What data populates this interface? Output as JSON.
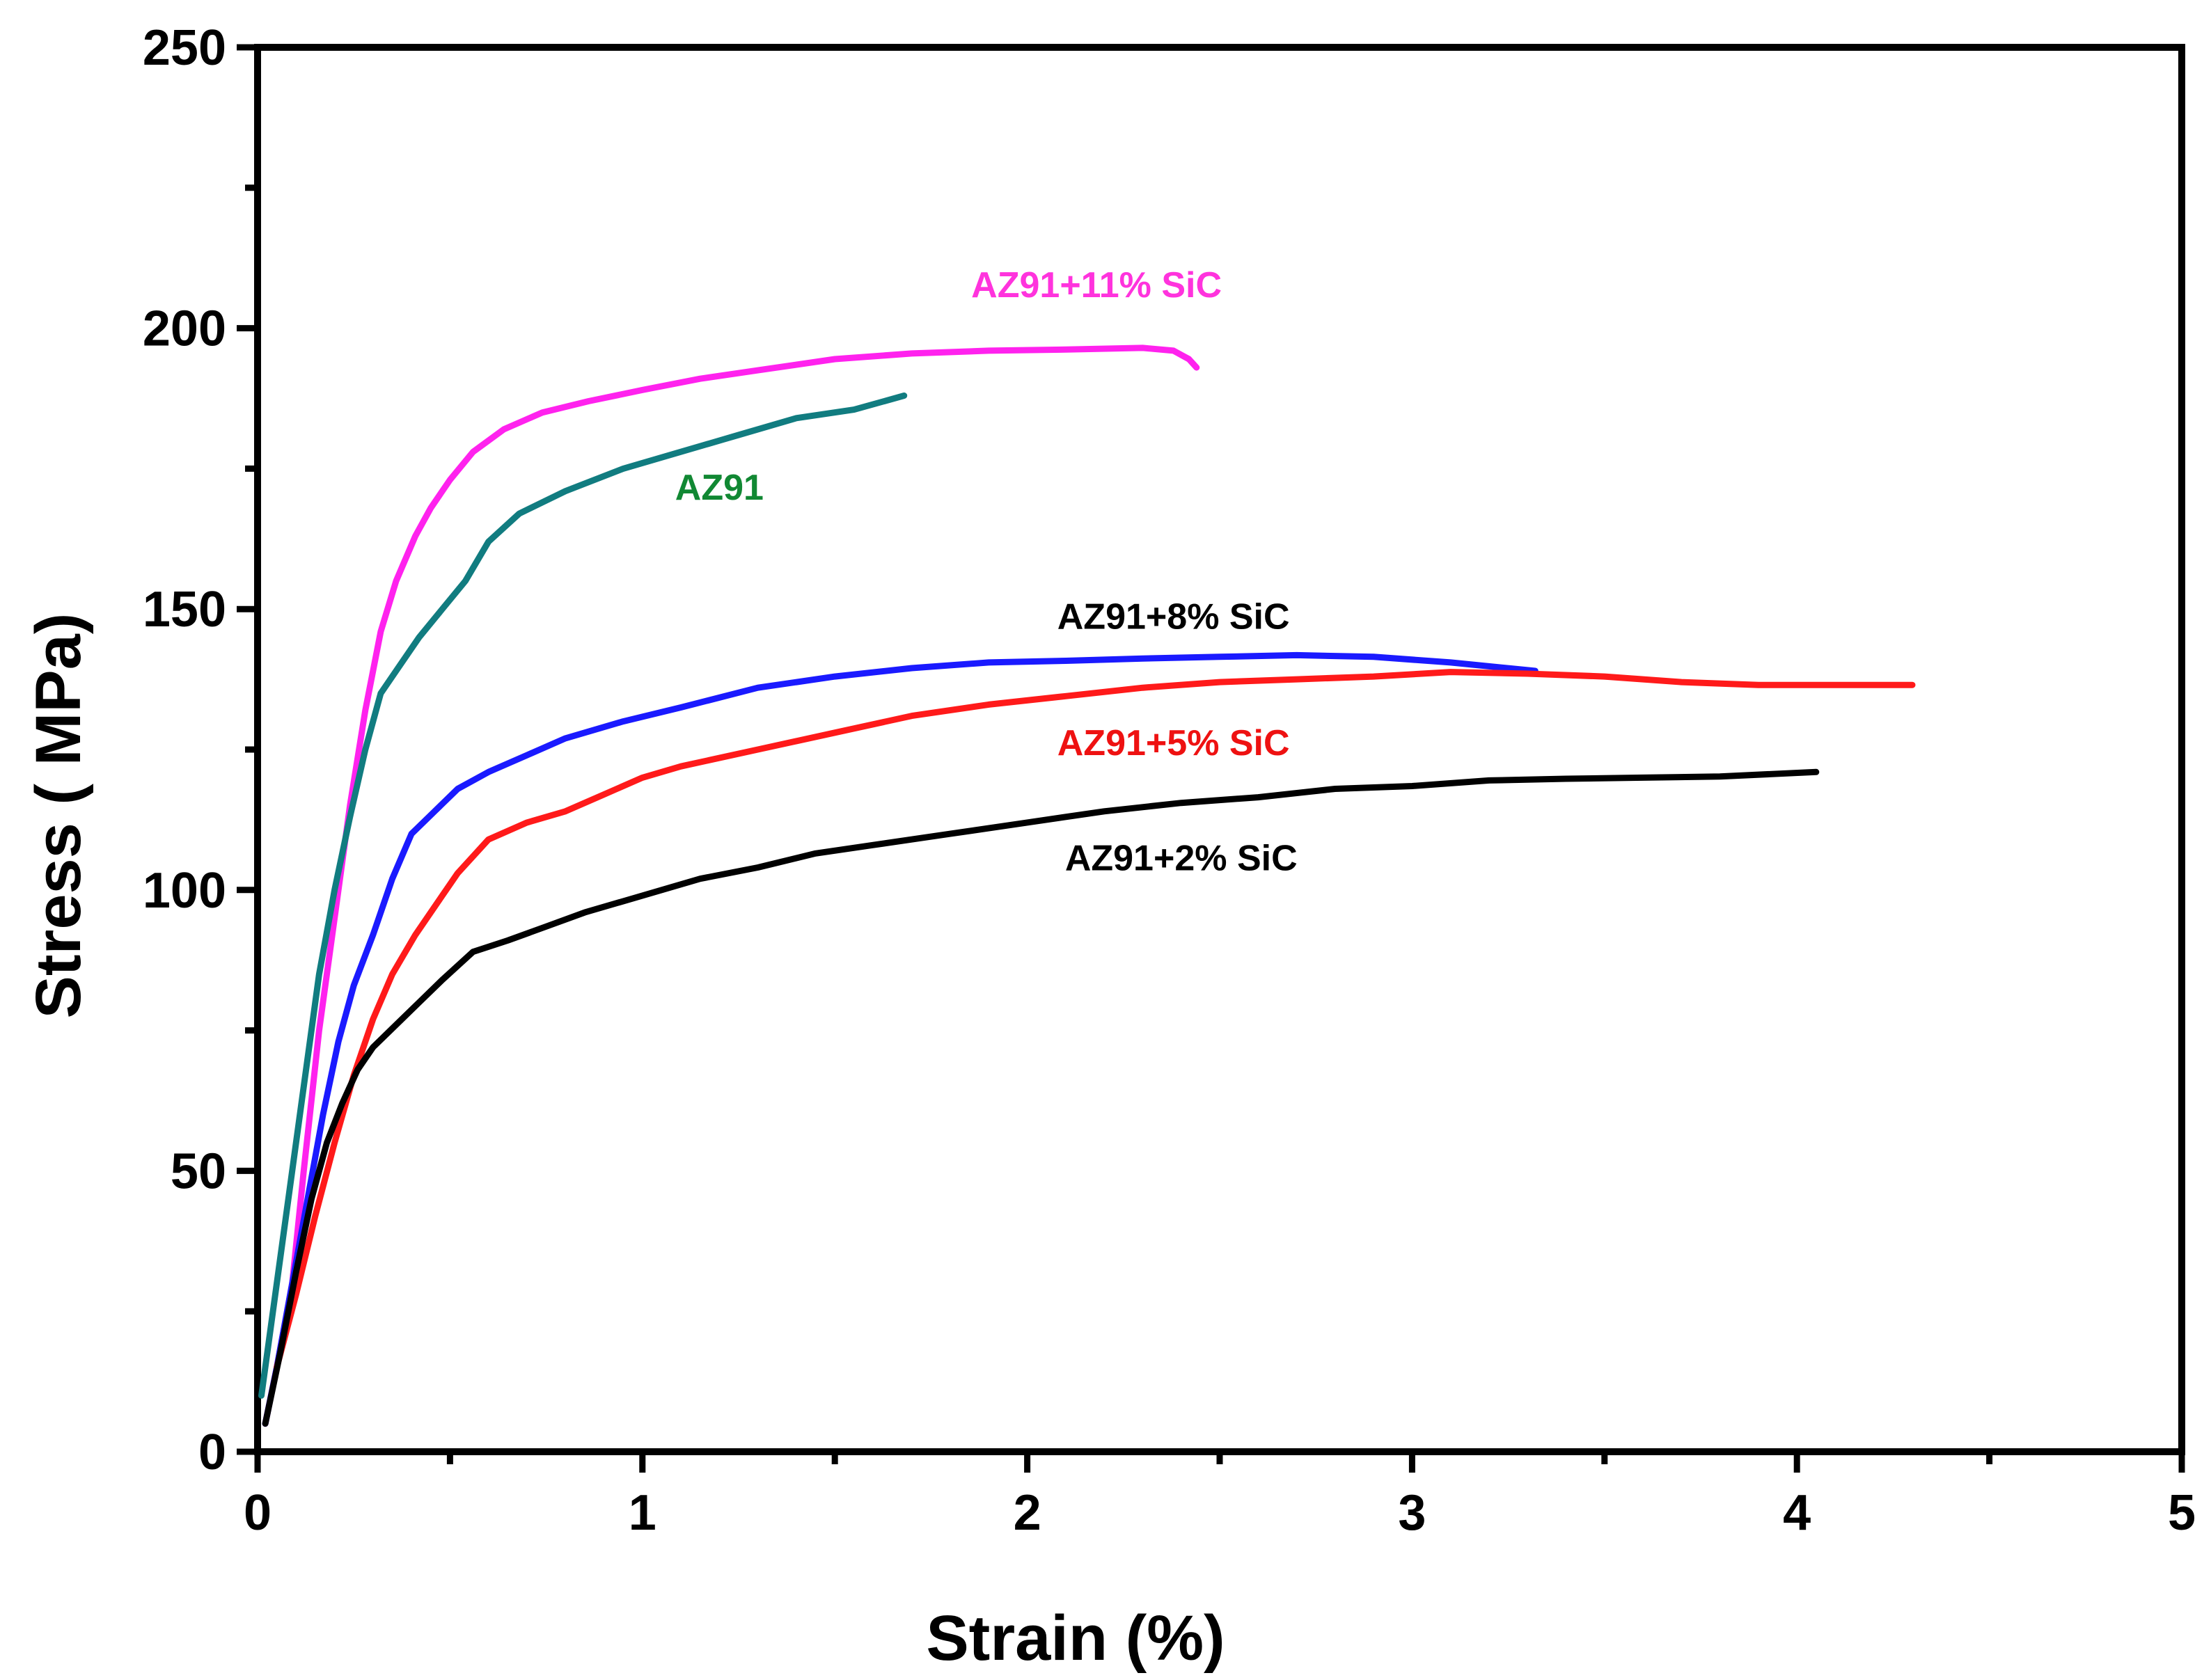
{
  "chart_data": {
    "type": "line",
    "title": "",
    "xlabel": "Strain (%)",
    "ylabel": "Stress ( MPa)",
    "xlim": [
      0,
      5
    ],
    "ylim": [
      0,
      250
    ],
    "x_ticks": [
      "0",
      "1",
      "2",
      "3",
      "4",
      "5"
    ],
    "y_ticks": [
      "0",
      "50",
      "100",
      "150",
      "200",
      "250"
    ],
    "grid": false,
    "series": [
      {
        "name": "AZ91+11% SiC",
        "color": "#ff22ee",
        "label": "AZ91+11% SiC",
        "points": [
          [
            0.02,
            5
          ],
          [
            0.05,
            15
          ],
          [
            0.09,
            30
          ],
          [
            0.12,
            50
          ],
          [
            0.16,
            75
          ],
          [
            0.2,
            95
          ],
          [
            0.24,
            115
          ],
          [
            0.28,
            132
          ],
          [
            0.32,
            146
          ],
          [
            0.36,
            155
          ],
          [
            0.41,
            163
          ],
          [
            0.45,
            168
          ],
          [
            0.5,
            173
          ],
          [
            0.56,
            178
          ],
          [
            0.64,
            182
          ],
          [
            0.74,
            185
          ],
          [
            0.86,
            187
          ],
          [
            1.0,
            189
          ],
          [
            1.15,
            191
          ],
          [
            1.3,
            192.5
          ],
          [
            1.5,
            194.5
          ],
          [
            1.7,
            195.5
          ],
          [
            1.9,
            196
          ],
          [
            2.1,
            196.2
          ],
          [
            2.3,
            196.5
          ],
          [
            2.38,
            196
          ],
          [
            2.42,
            194.5
          ],
          [
            2.44,
            193
          ]
        ]
      },
      {
        "name": "AZ91",
        "color": "#117c80",
        "label": "AZ91",
        "points": [
          [
            0.01,
            10
          ],
          [
            0.04,
            25
          ],
          [
            0.08,
            45
          ],
          [
            0.12,
            65
          ],
          [
            0.16,
            85
          ],
          [
            0.2,
            100
          ],
          [
            0.24,
            113
          ],
          [
            0.28,
            125
          ],
          [
            0.32,
            135
          ],
          [
            0.37,
            140
          ],
          [
            0.42,
            145
          ],
          [
            0.48,
            150
          ],
          [
            0.54,
            155
          ],
          [
            0.6,
            162
          ],
          [
            0.68,
            167
          ],
          [
            0.8,
            171
          ],
          [
            0.95,
            175
          ],
          [
            1.1,
            178
          ],
          [
            1.25,
            181
          ],
          [
            1.4,
            184
          ],
          [
            1.55,
            185.5
          ],
          [
            1.68,
            188
          ]
        ]
      },
      {
        "name": "AZ91+8% SiC",
        "color": "#1a1aff",
        "label": "AZ91+8% SiC",
        "points": [
          [
            0.02,
            5
          ],
          [
            0.05,
            15
          ],
          [
            0.09,
            30
          ],
          [
            0.13,
            45
          ],
          [
            0.17,
            60
          ],
          [
            0.21,
            73
          ],
          [
            0.25,
            83
          ],
          [
            0.3,
            92
          ],
          [
            0.35,
            102
          ],
          [
            0.4,
            110
          ],
          [
            0.46,
            114
          ],
          [
            0.52,
            118
          ],
          [
            0.6,
            121
          ],
          [
            0.7,
            124
          ],
          [
            0.8,
            127
          ],
          [
            0.95,
            130
          ],
          [
            1.1,
            132.5
          ],
          [
            1.3,
            136
          ],
          [
            1.5,
            138
          ],
          [
            1.7,
            139.5
          ],
          [
            1.9,
            140.5
          ],
          [
            2.1,
            140.8
          ],
          [
            2.3,
            141.2
          ],
          [
            2.5,
            141.5
          ],
          [
            2.7,
            141.8
          ],
          [
            2.9,
            141.5
          ],
          [
            3.1,
            140.5
          ],
          [
            3.32,
            139
          ]
        ]
      },
      {
        "name": "AZ91+5% SiC",
        "color": "#ff1a1a",
        "label": "AZ91+5% SiC",
        "points": [
          [
            0.05,
            15
          ],
          [
            0.1,
            28
          ],
          [
            0.15,
            42
          ],
          [
            0.2,
            55
          ],
          [
            0.25,
            67
          ],
          [
            0.3,
            77
          ],
          [
            0.35,
            85
          ],
          [
            0.41,
            92
          ],
          [
            0.47,
            98
          ],
          [
            0.52,
            103
          ],
          [
            0.6,
            109
          ],
          [
            0.7,
            112
          ],
          [
            0.8,
            114
          ],
          [
            0.9,
            117
          ],
          [
            1.0,
            120
          ],
          [
            1.1,
            122
          ],
          [
            1.3,
            125
          ],
          [
            1.5,
            128
          ],
          [
            1.7,
            131
          ],
          [
            1.9,
            133
          ],
          [
            2.1,
            134.5
          ],
          [
            2.3,
            136
          ],
          [
            2.5,
            137
          ],
          [
            2.7,
            137.5
          ],
          [
            2.9,
            138
          ],
          [
            3.1,
            138.8
          ],
          [
            3.3,
            138.5
          ],
          [
            3.5,
            138
          ],
          [
            3.7,
            137
          ],
          [
            3.9,
            136.5
          ],
          [
            4.1,
            136.5
          ],
          [
            4.3,
            136.5
          ]
        ]
      },
      {
        "name": "AZ91+2% SiC",
        "color": "#000000",
        "label": "AZ91+2% SiC",
        "points": [
          [
            0.02,
            5
          ],
          [
            0.06,
            18
          ],
          [
            0.1,
            32
          ],
          [
            0.14,
            45
          ],
          [
            0.18,
            55
          ],
          [
            0.22,
            62
          ],
          [
            0.26,
            68
          ],
          [
            0.3,
            72
          ],
          [
            0.36,
            76
          ],
          [
            0.42,
            80
          ],
          [
            0.48,
            84
          ],
          [
            0.56,
            89
          ],
          [
            0.65,
            91
          ],
          [
            0.75,
            93.5
          ],
          [
            0.85,
            96
          ],
          [
            1.0,
            99
          ],
          [
            1.15,
            102
          ],
          [
            1.3,
            104
          ],
          [
            1.45,
            106.5
          ],
          [
            1.6,
            108
          ],
          [
            1.8,
            110
          ],
          [
            2.0,
            112
          ],
          [
            2.2,
            114
          ],
          [
            2.4,
            115.5
          ],
          [
            2.6,
            116.5
          ],
          [
            2.8,
            118
          ],
          [
            3.0,
            118.5
          ],
          [
            3.2,
            119.5
          ],
          [
            3.4,
            119.8
          ],
          [
            3.6,
            120
          ],
          [
            3.8,
            120.2
          ],
          [
            4.05,
            121
          ]
        ]
      }
    ]
  }
}
